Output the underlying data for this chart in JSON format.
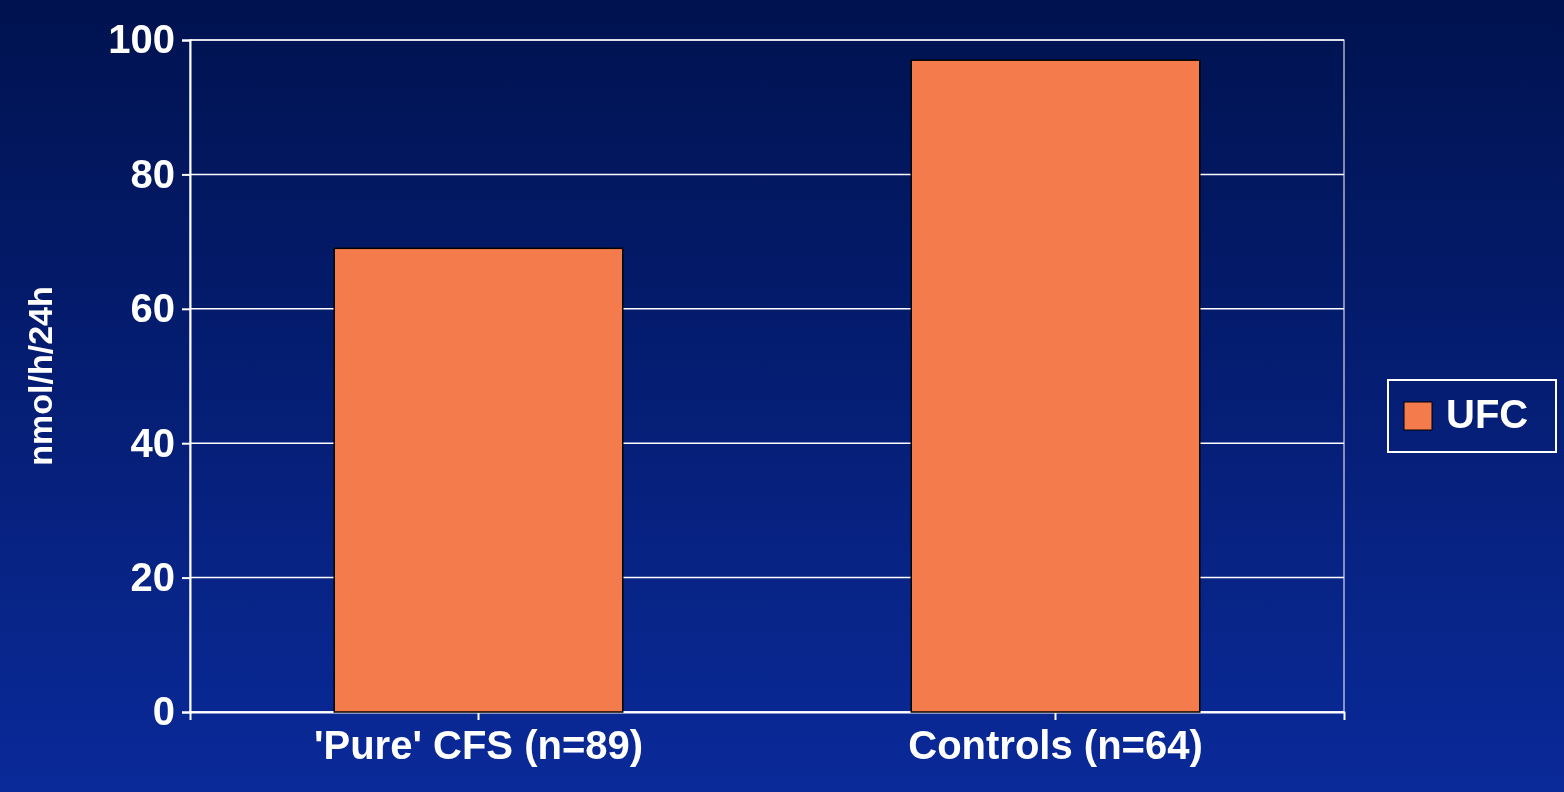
{
  "chart_data": {
    "type": "bar",
    "ylabel": "nmol/h/24h",
    "categories": [
      "'Pure' CFS (n=89)",
      "Controls (n=64)"
    ],
    "series": [
      {
        "name": "UFC",
        "color": "#f47c4c",
        "values": [
          69,
          97
        ]
      }
    ],
    "ylim": [
      0,
      100
    ],
    "yticks": [
      0,
      20,
      40,
      60,
      80,
      100
    ],
    "grid": "y",
    "legend": "right"
  }
}
